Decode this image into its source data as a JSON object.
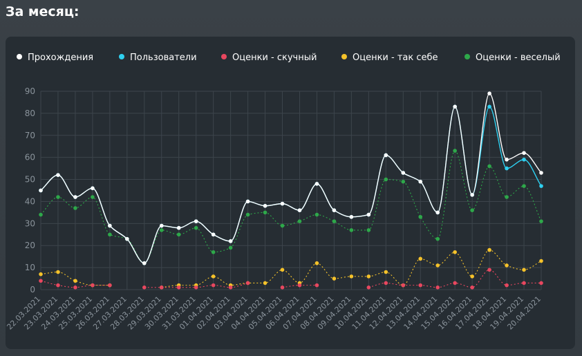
{
  "page": {
    "heading": "За месяц:"
  },
  "colors": {
    "background": "#363d43",
    "card": "#262d33",
    "grid": "#3d454c",
    "tick_text": "#8a939b",
    "legend_text": "#ffffff"
  },
  "chart_data": {
    "type": "line",
    "title": "",
    "xlabel": "",
    "ylabel": "",
    "ylim": [
      0,
      90
    ],
    "yticks": [
      0,
      10,
      20,
      30,
      40,
      50,
      60,
      70,
      80,
      90
    ],
    "grid": true,
    "legend_position": "top",
    "categories": [
      "22.03.2021",
      "23.03.2021",
      "24.03.2021",
      "25.03.2021",
      "26.03.2021",
      "27.03.2021",
      "28.03.2021",
      "29.03.2021",
      "30.03.2021",
      "31.03.2021",
      "01.04.2021",
      "02.04.2021",
      "03.04.2021",
      "04.04.2021",
      "05.04.2021",
      "06.04.2021",
      "07.04.2021",
      "08.04.2021",
      "09.04.2021",
      "10.04.2021",
      "11.04.2021",
      "12.04.2021",
      "13.04.2021",
      "14.04.2021",
      "15.04.2021",
      "16.04.2021",
      "17.04.2021",
      "18.04.2021",
      "19.04.2021",
      "20.04.2021"
    ],
    "series": [
      {
        "name": "Прохождения",
        "color": "#ffffff",
        "style": "solid",
        "values": [
          45,
          52,
          42,
          46,
          29,
          23,
          12,
          29,
          28,
          31,
          25,
          22,
          40,
          38,
          39,
          36,
          48,
          36,
          33,
          34,
          61,
          53,
          49,
          35,
          83,
          43,
          89,
          59,
          62,
          53
        ]
      },
      {
        "name": "Пользователи",
        "color": "#2fd0f0",
        "style": "solid",
        "values": [
          45,
          52,
          42,
          46,
          29,
          23,
          12,
          29,
          28,
          31,
          25,
          22,
          40,
          38,
          39,
          36,
          48,
          36,
          33,
          34,
          61,
          53,
          49,
          35,
          83,
          43,
          83,
          55,
          59,
          47
        ]
      },
      {
        "name": "Оценки - скучный",
        "color": "#e8475f",
        "style": "dotted",
        "values": [
          4,
          2,
          1,
          2,
          2,
          null,
          1,
          1,
          1,
          1,
          2,
          1,
          3,
          null,
          1,
          2,
          2,
          null,
          null,
          1,
          3,
          2,
          2,
          1,
          3,
          1,
          9,
          2,
          3,
          3
        ]
      },
      {
        "name": "Оценки - так себе",
        "color": "#f5c22a",
        "style": "dotted",
        "values": [
          7,
          8,
          4,
          2,
          2,
          null,
          null,
          1,
          2,
          2,
          6,
          2,
          3,
          3,
          9,
          3,
          12,
          5,
          6,
          6,
          8,
          2,
          14,
          11,
          17,
          6,
          18,
          11,
          9,
          13
        ]
      },
      {
        "name": "Оценки - веселый",
        "color": "#2ea84a",
        "style": "dotted",
        "values": [
          34,
          42,
          37,
          42,
          25,
          23,
          12,
          27,
          25,
          28,
          17,
          19,
          34,
          35,
          29,
          31,
          34,
          31,
          27,
          27,
          50,
          49,
          33,
          23,
          63,
          36,
          56,
          42,
          47,
          31
        ]
      }
    ]
  }
}
